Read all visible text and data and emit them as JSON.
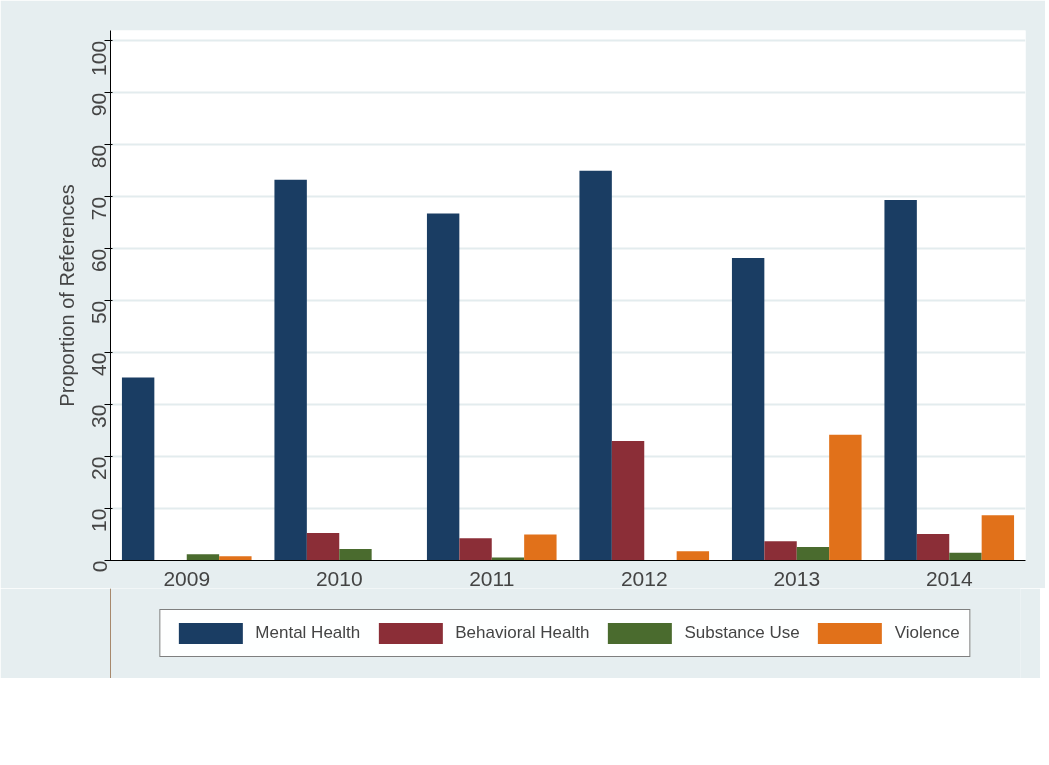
{
  "chart_data": {
    "type": "bar",
    "ylabel": "Proportion of References",
    "categories": [
      "2009",
      "2010",
      "2011",
      "2012",
      "2013",
      "2014"
    ],
    "series": [
      {
        "name": "Mental Health",
        "color": "#1a3d63",
        "values": [
          35.2,
          73.3,
          66.8,
          75.0,
          58.2,
          69.4
        ]
      },
      {
        "name": "Behavioral Health",
        "color": "#8b2e37",
        "values": [
          0,
          5.3,
          4.3,
          23.0,
          3.7,
          5.1
        ]
      },
      {
        "name": "Substance Use",
        "color": "#4a6b2e",
        "values": [
          1.2,
          2.2,
          0.6,
          0,
          2.6,
          1.5
        ]
      },
      {
        "name": "Violence",
        "color": "#e1711a",
        "values": [
          0.8,
          0,
          5.0,
          1.8,
          24.2,
          8.7
        ]
      }
    ],
    "ylim": [
      0,
      102
    ],
    "yticks": [
      0,
      10,
      20,
      30,
      40,
      50,
      60,
      70,
      80,
      90,
      100
    ],
    "grid": "y",
    "legend": "bottom"
  }
}
